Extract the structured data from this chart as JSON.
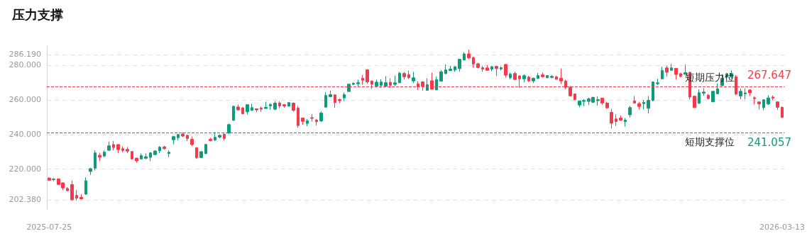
{
  "chart_data": {
    "type": "candlestick",
    "title": "压力支撑",
    "categories": [
      "2025-07-25",
      null,
      null,
      null,
      null,
      null,
      null,
      null,
      null,
      null,
      null,
      null,
      null,
      null,
      null,
      null,
      null,
      null,
      null,
      null,
      null,
      null,
      null,
      null,
      null,
      null,
      null,
      null,
      null,
      null,
      null,
      null,
      null,
      null,
      null,
      null,
      null,
      null,
      null,
      null,
      null,
      null,
      null,
      null,
      null,
      null,
      null,
      null,
      null,
      null,
      null,
      null,
      null,
      null,
      null,
      null,
      null,
      null,
      null,
      null,
      null,
      null,
      null,
      null,
      null,
      null,
      null,
      null,
      null,
      null,
      null,
      null,
      null,
      null,
      null,
      null,
      null,
      null,
      null,
      null,
      null,
      null,
      null,
      null,
      null,
      null,
      null,
      null,
      null,
      null,
      null,
      null,
      null,
      null,
      null,
      null,
      null,
      null,
      null,
      null,
      null,
      null,
      null,
      null,
      null,
      null,
      null,
      null,
      null,
      null,
      null,
      null,
      null,
      null,
      null,
      null,
      null,
      null,
      null,
      null,
      null,
      null,
      null,
      null,
      null,
      null,
      null,
      null,
      null,
      null,
      null,
      null,
      null,
      null,
      null,
      null,
      null,
      null,
      null,
      null,
      null,
      null,
      null,
      null,
      null,
      null,
      null,
      null,
      null,
      null,
      null,
      null,
      null,
      null,
      null,
      null,
      null,
      null,
      null,
      "2026-03-13"
    ],
    "ohlc": [
      [
        214.9,
        215.3,
        213.3,
        213.6
      ],
      [
        214.0,
        214.9,
        213.1,
        214.3
      ],
      [
        214.4,
        214.7,
        210.9,
        211.2
      ],
      [
        212.1,
        212.4,
        207.9,
        209.2
      ],
      [
        208.9,
        209.7,
        207.3,
        207.6
      ],
      [
        211.1,
        213.5,
        201.7,
        202.4
      ],
      [
        204.9,
        207.9,
        201.9,
        203.3
      ],
      [
        203.7,
        205.5,
        202.4,
        202.9
      ],
      [
        205.6,
        215.3,
        205.3,
        213.3
      ],
      [
        218.7,
        220.8,
        216.7,
        220.3
      ],
      [
        220.6,
        230.9,
        219.3,
        229.4
      ],
      [
        228.0,
        229.5,
        224.8,
        226.9
      ],
      [
        227.6,
        230.8,
        226.9,
        229.8
      ],
      [
        230.9,
        236.0,
        230.5,
        233.5
      ],
      [
        234.2,
        236.2,
        230.8,
        232.5
      ],
      [
        234.2,
        234.4,
        229.3,
        231.3
      ],
      [
        231.8,
        233.1,
        229.8,
        230.8
      ],
      [
        231.4,
        232.8,
        229.3,
        230.4
      ],
      [
        230.2,
        230.4,
        225.6,
        225.9
      ],
      [
        226.4,
        226.5,
        223.8,
        224.8
      ],
      [
        225.9,
        229.0,
        225.7,
        227.9
      ],
      [
        226.3,
        229.1,
        225.7,
        227.2
      ],
      [
        226.8,
        229.8,
        224.6,
        229.4
      ],
      [
        228.4,
        230.9,
        228.2,
        230.5
      ],
      [
        230.6,
        233.3,
        229.3,
        232.7
      ],
      [
        232.9,
        233.5,
        231.3,
        231.8
      ],
      [
        229.0,
        230.8,
        226.9,
        229.8
      ],
      [
        237.0,
        239.1,
        234.4,
        238.8
      ],
      [
        238.2,
        240.3,
        236.7,
        240.0
      ],
      [
        240.3,
        241.4,
        238.5,
        239.1
      ],
      [
        239.5,
        240.0,
        236.2,
        237.7
      ],
      [
        237.2,
        238.8,
        233.3,
        234.2
      ],
      [
        232.4,
        232.5,
        226.0,
        226.7
      ],
      [
        226.7,
        230.4,
        226.4,
        230.1
      ],
      [
        229.0,
        234.6,
        228.7,
        234.3
      ],
      [
        237.3,
        238.1,
        236.0,
        236.5
      ],
      [
        236.9,
        241.4,
        236.2,
        238.4
      ],
      [
        238.5,
        240.1,
        237.8,
        239.5
      ],
      [
        240.1,
        241.2,
        236.5,
        237.7
      ],
      [
        240.8,
        246.3,
        240.3,
        245.7
      ],
      [
        248.2,
        256.7,
        247.9,
        256.3
      ],
      [
        255.9,
        257.3,
        253.6,
        254.2
      ],
      [
        255.4,
        255.7,
        251.8,
        252.0
      ],
      [
        253.1,
        257.3,
        251.6,
        257.2
      ],
      [
        253.9,
        257.7,
        253.6,
        255.5
      ],
      [
        254.8,
        255.0,
        252.9,
        254.2
      ],
      [
        255.2,
        256.1,
        253.1,
        254.6
      ],
      [
        255.0,
        258.9,
        254.8,
        255.7
      ],
      [
        256.5,
        258.1,
        254.3,
        257.3
      ],
      [
        254.6,
        259.2,
        254.0,
        258.1
      ],
      [
        258.2,
        259.1,
        255.1,
        256.5
      ],
      [
        257.2,
        257.6,
        255.5,
        256.5
      ],
      [
        256.3,
        258.5,
        256.2,
        258.4
      ],
      [
        258.1,
        258.5,
        253.2,
        253.9
      ],
      [
        255.2,
        256.5,
        244.0,
        245.2
      ],
      [
        249.5,
        249.8,
        245.6,
        247.6
      ],
      [
        246.4,
        248.9,
        244.8,
        247.9
      ],
      [
        249.7,
        251.8,
        247.5,
        249.3
      ],
      [
        248.4,
        249.0,
        245.2,
        247.4
      ],
      [
        247.9,
        253.3,
        247.2,
        252.4
      ],
      [
        255.8,
        264.5,
        255.7,
        262.5
      ],
      [
        261.8,
        265.3,
        261.5,
        263.0
      ],
      [
        262.9,
        263.1,
        255.4,
        258.4
      ],
      [
        260.1,
        260.7,
        258.1,
        259.5
      ],
      [
        261.1,
        264.2,
        259.3,
        263.0
      ],
      [
        264.8,
        269.3,
        264.6,
        269.0
      ],
      [
        268.9,
        270.1,
        268.4,
        269.5
      ],
      [
        269.3,
        271.6,
        267.2,
        269.9
      ],
      [
        272.4,
        274.3,
        268.7,
        271.3
      ],
      [
        277.3,
        277.6,
        269.3,
        270.3
      ],
      [
        270.8,
        271.2,
        266.3,
        269.0
      ],
      [
        268.0,
        271.6,
        267.8,
        270.2
      ],
      [
        268.4,
        271.8,
        266.9,
        270.3
      ],
      [
        267.8,
        273.6,
        267.7,
        269.9
      ],
      [
        270.1,
        272.4,
        266.8,
        268.4
      ],
      [
        268.9,
        273.9,
        267.8,
        269.8
      ],
      [
        269.8,
        276.1,
        269.7,
        275.4
      ],
      [
        275.2,
        276.1,
        271.7,
        273.3
      ],
      [
        274.6,
        276.9,
        272.0,
        272.8
      ],
      [
        270.9,
        276.1,
        269.7,
        272.7
      ],
      [
        269.1,
        270.6,
        265.7,
        267.4
      ],
      [
        270.3,
        270.8,
        265.3,
        267.8
      ],
      [
        265.5,
        272.4,
        265.3,
        268.7
      ],
      [
        271.0,
        275.7,
        265.9,
        266.1
      ],
      [
        265.7,
        273.5,
        265.6,
        271.7
      ],
      [
        270.8,
        277.2,
        270.7,
        276.2
      ],
      [
        275.1,
        280.4,
        274.8,
        277.3
      ],
      [
        276.9,
        279.6,
        276.5,
        277.8
      ],
      [
        277.2,
        279.2,
        276.1,
        279.1
      ],
      [
        278.0,
        283.5,
        276.2,
        283.4
      ],
      [
        282.9,
        287.5,
        282.7,
        286.5
      ],
      [
        286.5,
        288.9,
        283.5,
        284.2
      ],
      [
        284.4,
        285.0,
        278.6,
        280.7
      ],
      [
        280.8,
        281.4,
        278.1,
        278.6
      ],
      [
        278.5,
        279.7,
        276.2,
        277.7
      ],
      [
        278.4,
        280.0,
        276.9,
        277.0
      ],
      [
        277.6,
        279.6,
        276.5,
        279.1
      ],
      [
        279.3,
        279.7,
        273.7,
        278.0
      ],
      [
        277.8,
        279.3,
        277.0,
        278.5
      ],
      [
        280.4,
        280.6,
        272.9,
        274.2
      ],
      [
        272.8,
        275.7,
        271.8,
        274.8
      ],
      [
        275.2,
        276.2,
        271.7,
        271.7
      ],
      [
        273.8,
        274.0,
        266.9,
        272.1
      ],
      [
        272.1,
        274.7,
        270.1,
        273.9
      ],
      [
        273.1,
        273.8,
        270.3,
        270.9
      ],
      [
        270.9,
        272.8,
        269.7,
        272.5
      ],
      [
        272.3,
        275.5,
        272.1,
        274.0
      ],
      [
        274.4,
        275.7,
        272.9,
        273.3
      ],
      [
        272.7,
        274.3,
        272.5,
        274.0
      ],
      [
        272.9,
        274.3,
        272.4,
        273.5
      ],
      [
        273.3,
        273.9,
        271.7,
        271.8
      ],
      [
        272.5,
        278.0,
        269.1,
        270.9
      ],
      [
        270.8,
        271.6,
        266.1,
        267.2
      ],
      [
        267.2,
        268.0,
        261.9,
        262.3
      ],
      [
        263.4,
        263.5,
        259.7,
        260.1
      ],
      [
        257.0,
        259.5,
        255.7,
        259.3
      ],
      [
        259.1,
        260.4,
        256.3,
        259.6
      ],
      [
        259.1,
        261.4,
        256.9,
        260.6
      ],
      [
        258.6,
        261.8,
        258.2,
        261.4
      ],
      [
        259.5,
        261.9,
        256.7,
        260.1
      ],
      [
        261.0,
        261.1,
        257.2,
        258.2
      ],
      [
        258.1,
        258.9,
        254.8,
        255.4
      ],
      [
        252.8,
        254.8,
        243.4,
        246.5
      ],
      [
        249.0,
        251.6,
        245.0,
        247.5
      ],
      [
        249.5,
        251.0,
        247.9,
        248.2
      ],
      [
        247.4,
        249.5,
        244.6,
        248.3
      ],
      [
        251.4,
        256.5,
        249.8,
        255.5
      ],
      [
        259.3,
        262.2,
        258.0,
        258.1
      ],
      [
        257.8,
        258.9,
        254.4,
        256.2
      ],
      [
        257.8,
        259.9,
        254.4,
        258.6
      ],
      [
        255.1,
        262.2,
        252.1,
        259.7
      ],
      [
        259.6,
        270.6,
        259.2,
        270.3
      ],
      [
        269.3,
        272.1,
        268.4,
        269.8
      ],
      [
        272.1,
        279.1,
        272.0,
        276.9
      ],
      [
        278.4,
        279.6,
        273.3,
        275.9
      ],
      [
        277.0,
        280.8,
        276.9,
        278.4
      ],
      [
        278.1,
        278.4,
        271.6,
        274.7
      ],
      [
        275.1,
        275.7,
        272.9,
        273.5
      ],
      [
        274.7,
        280.3,
        274.6,
        275.7
      ],
      [
        275.9,
        276.1,
        260.3,
        261.6
      ],
      [
        262.1,
        262.3,
        255.4,
        255.5
      ],
      [
        258.0,
        266.0,
        257.7,
        264.1
      ],
      [
        263.8,
        266.7,
        262.3,
        264.5
      ],
      [
        262.7,
        263.4,
        260.1,
        260.7
      ],
      [
        258.9,
        265.0,
        258.5,
        264.9
      ],
      [
        263.5,
        269.4,
        263.3,
        266.3
      ],
      [
        268.2,
        274.8,
        267.9,
        272.4
      ],
      [
        273.1,
        275.5,
        272.1,
        274.8
      ],
      [
        273.1,
        277.0,
        272.4,
        275.2
      ],
      [
        273.3,
        274.2,
        262.7,
        263.3
      ],
      [
        262.2,
        266.5,
        260.3,
        264.9
      ],
      [
        263.5,
        266.7,
        260.3,
        264.0
      ],
      [
        265.7,
        266.1,
        262.2,
        264.0
      ],
      [
        261.2,
        261.9,
        257.4,
        260.7
      ],
      [
        258.8,
        259.1,
        254.4,
        257.7
      ],
      [
        255.5,
        260.4,
        254.0,
        260.0
      ],
      [
        257.6,
        262.6,
        257.0,
        261.1
      ],
      [
        261.6,
        262.5,
        259.7,
        261.0
      ],
      [
        258.8,
        259.1,
        254.2,
        255.7
      ],
      [
        255.7,
        256.2,
        249.5,
        249.9
      ]
    ],
    "colors": [
      "#f23a4c",
      "#0e9b7c",
      "#f23a4c",
      "#f23a4c",
      "#f23a4c",
      "#f23a4c",
      "#f23a4c",
      "#f23a4c",
      "#0e9b7c",
      "#0e9b7c",
      "#0e9b7c",
      "#f23a4c",
      "#0e9b7c",
      "#0e9b7c",
      "#f23a4c",
      "#f23a4c",
      "#f23a4c",
      "#f23a4c",
      "#f23a4c",
      "#f23a4c",
      "#0e9b7c",
      "#0e9b7c",
      "#0e9b7c",
      "#0e9b7c",
      "#0e9b7c",
      "#f23a4c",
      "#0e9b7c",
      "#0e9b7c",
      "#0e9b7c",
      "#f23a4c",
      "#f23a4c",
      "#f23a4c",
      "#f23a4c",
      "#0e9b7c",
      "#0e9b7c",
      "#f23a4c",
      "#0e9b7c",
      "#0e9b7c",
      "#f23a4c",
      "#0e9b7c",
      "#0e9b7c",
      "#f23a4c",
      "#f23a4c",
      "#0e9b7c",
      "#0e9b7c",
      "#f23a4c",
      "#f23a4c",
      "#0e9b7c",
      "#0e9b7c",
      "#0e9b7c",
      "#f23a4c",
      "#f23a4c",
      "#0e9b7c",
      "#f23a4c",
      "#f23a4c",
      "#f23a4c",
      "#0e9b7c",
      "#f23a4c",
      "#f23a4c",
      "#0e9b7c",
      "#0e9b7c",
      "#0e9b7c",
      "#f23a4c",
      "#f23a4c",
      "#0e9b7c",
      "#0e9b7c",
      "#0e9b7c",
      "#0e9b7c",
      "#f23a4c",
      "#f23a4c",
      "#f23a4c",
      "#0e9b7c",
      "#0e9b7c",
      "#0e9b7c",
      "#f23a4c",
      "#0e9b7c",
      "#0e9b7c",
      "#f23a4c",
      "#f23a4c",
      "#0e9b7c",
      "#f23a4c",
      "#f23a4c",
      "#0e9b7c",
      "#f23a4c",
      "#0e9b7c",
      "#0e9b7c",
      "#0e9b7c",
      "#0e9b7c",
      "#0e9b7c",
      "#0e9b7c",
      "#0e9b7c",
      "#f23a4c",
      "#f23a4c",
      "#f23a4c",
      "#f23a4c",
      "#f23a4c",
      "#0e9b7c",
      "#f23a4c",
      "#0e9b7c",
      "#f23a4c",
      "#0e9b7c",
      "#f23a4c",
      "#f23a4c",
      "#0e9b7c",
      "#f23a4c",
      "#0e9b7c",
      "#0e9b7c",
      "#f23a4c",
      "#0e9b7c",
      "#0e9b7c",
      "#f23a4c",
      "#f23a4c",
      "#f23a4c",
      "#f23a4c",
      "#f23a4c",
      "#0e9b7c",
      "#0e9b7c",
      "#0e9b7c",
      "#0e9b7c",
      "#0e9b7c",
      "#f23a4c",
      "#f23a4c",
      "#f23a4c",
      "#f23a4c",
      "#f23a4c",
      "#0e9b7c",
      "#0e9b7c",
      "#f23a4c",
      "#f23a4c",
      "#0e9b7c",
      "#0e9b7c",
      "#0e9b7c",
      "#0e9b7c",
      "#0e9b7c",
      "#f23a4c",
      "#0e9b7c",
      "#f23a4c",
      "#f23a4c",
      "#0e9b7c",
      "#f23a4c",
      "#f23a4c",
      "#0e9b7c",
      "#0e9b7c",
      "#f23a4c",
      "#0e9b7c",
      "#0e9b7c",
      "#0e9b7c",
      "#0e9b7c",
      "#0e9b7c",
      "#f23a4c",
      "#0e9b7c",
      "#0e9b7c",
      "#f23a4c",
      "#f23a4c",
      "#f23a4c",
      "#0e9b7c",
      "#0e9b7c",
      "#f23a4c",
      "#f23a4c",
      "#f23a4c"
    ],
    "ylim": [
      197,
      291
    ],
    "yticks": [
      {
        "value": 202.38,
        "label": "202.380"
      },
      {
        "value": 220,
        "label": "220.000"
      },
      {
        "value": 240,
        "label": "240.000"
      },
      {
        "value": 260,
        "label": "260.000"
      },
      {
        "value": 280,
        "label": "280.000"
      },
      {
        "value": 286.19,
        "label": "286.190"
      }
    ],
    "grid": "y",
    "annotations": [
      {
        "text": "267.647",
        "y": 267.647
      },
      {
        "text": "241.057",
        "y": 241.057
      }
    ],
    "ref_lines": [
      {
        "axis": "y",
        "value": 267.647,
        "label": "短期压力位",
        "color": "#f0404f",
        "line_style": "dashed"
      },
      {
        "axis": "y",
        "value": 241.057,
        "label": "短期支撑位",
        "color": "#17997b",
        "line_style": "dashed"
      }
    ]
  }
}
